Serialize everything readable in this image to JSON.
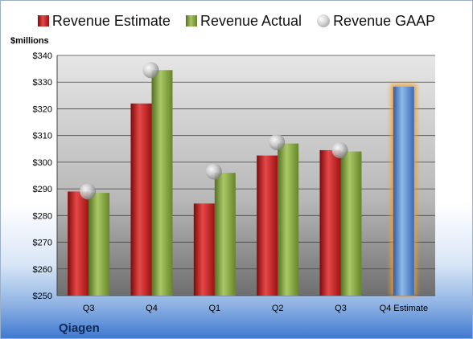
{
  "chart_data": {
    "type": "bar",
    "company": "Qiagen",
    "ylabel": "$millions",
    "ylim": [
      250,
      340
    ],
    "ytick_step": 10,
    "ytick_prefix": "$",
    "grid": true,
    "legend_position": "top",
    "categories": [
      "Q3",
      "Q4",
      "Q1",
      "Q2",
      "Q3",
      "Q4 Estimate"
    ],
    "series": [
      {
        "name": "Revenue Estimate",
        "kind": "bar",
        "color": "#c0262b",
        "values": [
          289,
          322,
          284.5,
          302.5,
          304.5,
          null
        ]
      },
      {
        "name": "Revenue Actual",
        "kind": "bar",
        "color": "#86a83c",
        "values": [
          288.5,
          334.5,
          296,
          307,
          304,
          328.3
        ]
      },
      {
        "name": "Revenue GAAP",
        "kind": "marker",
        "color": "#a6a6a6",
        "values": [
          289,
          334.5,
          296.5,
          307.5,
          304.5,
          null
        ]
      }
    ],
    "highlight": {
      "category": "Q4 Estimate",
      "color": "#6e9fd8",
      "glow": "#f39c2b"
    }
  }
}
